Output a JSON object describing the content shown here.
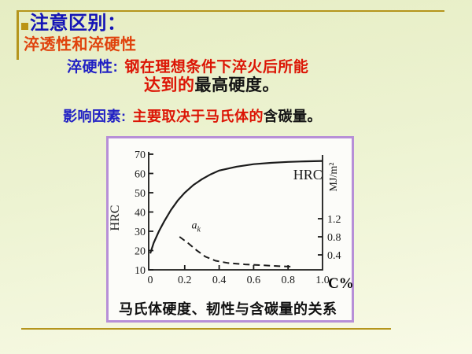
{
  "slide": {
    "title": "注意区别：",
    "subtitle": "淬透性和淬硬性",
    "definition": {
      "label": "淬硬性:",
      "red_part": "钢在理想条件下淬火后所能",
      "red_part2": "达到的",
      "black_part": "最高硬度。"
    },
    "factors": {
      "label": "影响因素:",
      "red_part": "主要取决于马氏体的",
      "black_part": "含碳量。"
    }
  },
  "icons": {
    "title_bullet": "small-gold-square"
  },
  "colors": {
    "background_top": "#e6edc3",
    "background_bottom": "#f8fae6",
    "divider_gold": "#b5951d",
    "bullet_gold": "#bb9415",
    "title_blue": "#1414b6",
    "label_blue": "#2121c4",
    "emphasis_red": "#dc1505",
    "subtitle_orange_red": "#e0430d",
    "body_black": "#141414",
    "chart_border_purple": "#b78fd7",
    "chart_ink": "#1b1b1b"
  },
  "chart_data": {
    "type": "line",
    "caption": "马氏体硬度、韧性与含碳量的关系",
    "grid": false,
    "legend": "none",
    "x_axis": {
      "label": "C%",
      "ticks": [
        "0",
        "0.2",
        "0.4",
        "0.6",
        "0.8",
        "1.0"
      ],
      "range": [
        0,
        1.0
      ]
    },
    "left_axis": {
      "label": "HRC",
      "ticks": [
        "70",
        "60",
        "50",
        "40",
        "30",
        "20",
        "10"
      ],
      "range": [
        10,
        70
      ]
    },
    "right_axis": {
      "label": "MJ/m²",
      "ticks": [
        "1.2",
        "0.8",
        "0.4"
      ],
      "range": [
        0,
        1.5
      ]
    },
    "series": [
      {
        "name": "HRC hardness",
        "axis": "left",
        "line_style": "solid",
        "points": [
          [
            0,
            18.5
          ],
          [
            0.02,
            24
          ],
          [
            0.05,
            30
          ],
          [
            0.08,
            35
          ],
          [
            0.12,
            41
          ],
          [
            0.16,
            46
          ],
          [
            0.2,
            50
          ],
          [
            0.25,
            54
          ],
          [
            0.3,
            57
          ],
          [
            0.35,
            59.5
          ],
          [
            0.4,
            61.5
          ],
          [
            0.5,
            63.5
          ],
          [
            0.6,
            64.8
          ],
          [
            0.7,
            65.5
          ],
          [
            0.8,
            66.0
          ],
          [
            0.9,
            66.3
          ],
          [
            1.0,
            66.5
          ]
        ]
      },
      {
        "name": "ak impact toughness",
        "axis": "right",
        "line_style": "dashed",
        "points": [
          [
            0.17,
            0.8
          ],
          [
            0.22,
            0.66
          ],
          [
            0.27,
            0.5
          ],
          [
            0.32,
            0.36
          ],
          [
            0.38,
            0.27
          ],
          [
            0.45,
            0.22
          ],
          [
            0.55,
            0.19
          ],
          [
            0.65,
            0.17
          ],
          [
            0.75,
            0.15
          ],
          [
            0.82,
            0.14
          ]
        ]
      }
    ],
    "annotations": [
      {
        "text": "HRC",
        "x": 0.83,
        "y": 57,
        "axis": "left",
        "style": "plain"
      },
      {
        "text": "a",
        "sub": "k",
        "x": 0.24,
        "y": 31.5,
        "axis": "left",
        "style": "italic"
      }
    ]
  }
}
